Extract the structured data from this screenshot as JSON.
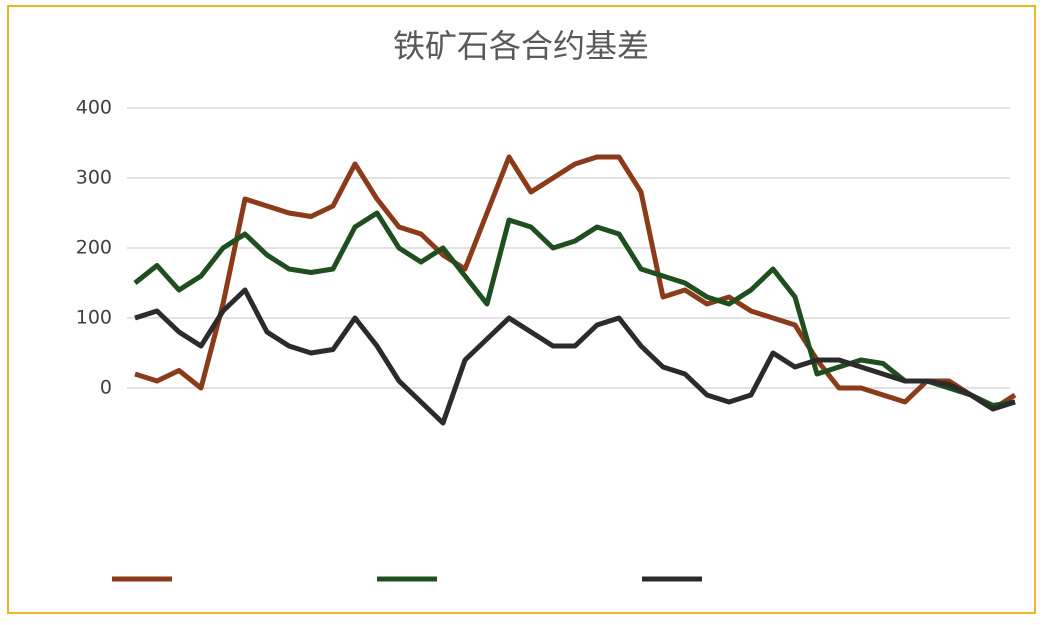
{
  "chart_data": {
    "type": "line",
    "title": "铁矿石各合约基差",
    "ylim": [
      -40,
      400
    ],
    "yticks": [
      0,
      100,
      200,
      300,
      400
    ],
    "grid": true,
    "series": [
      {
        "color": "#8b3a1a",
        "values": [
          20,
          10,
          25,
          0,
          120,
          270,
          260,
          250,
          245,
          260,
          320,
          270,
          230,
          220,
          190,
          170,
          250,
          330,
          280,
          300,
          320,
          330,
          330,
          280,
          130,
          140,
          120,
          130,
          110,
          100,
          90,
          40,
          0,
          0,
          -10,
          -20,
          10,
          10,
          -10,
          -30,
          -10
        ]
      },
      {
        "color": "#1f4e1f",
        "values": [
          150,
          175,
          140,
          160,
          200,
          220,
          190,
          170,
          165,
          170,
          230,
          250,
          200,
          180,
          200,
          160,
          120,
          240,
          230,
          200,
          210,
          230,
          220,
          170,
          160,
          150,
          130,
          120,
          140,
          170,
          130,
          20,
          30,
          40,
          35,
          10,
          10,
          0,
          -10,
          -25,
          -20
        ]
      },
      {
        "color": "#2b2b2b",
        "values": [
          100,
          110,
          80,
          60,
          110,
          140,
          80,
          60,
          50,
          55,
          100,
          60,
          10,
          -20,
          -50,
          40,
          70,
          100,
          80,
          60,
          60,
          90,
          100,
          60,
          30,
          20,
          -10,
          -20,
          -10,
          50,
          30,
          40,
          40,
          30,
          20,
          10,
          10,
          5,
          -10,
          -30,
          -20
        ]
      }
    ]
  }
}
